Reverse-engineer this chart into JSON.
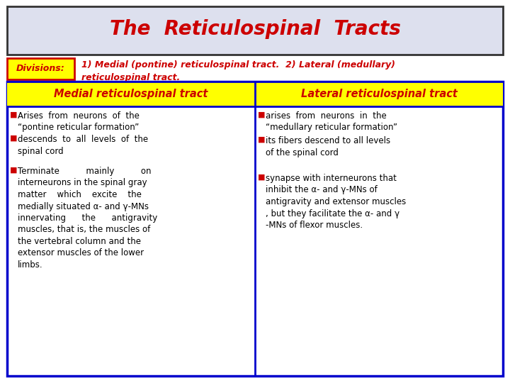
{
  "title": "The  Reticulospinal  Tracts",
  "title_color": "#cc0000",
  "title_bg": "#dde0ee",
  "title_border": "#333333",
  "divisions_label": "Divisions:",
  "divisions_text1": "1) Medial (pontine) reticulospinal tract.  2) Lateral (medullary)",
  "divisions_text2": "reticulospinal tract.",
  "divisions_color": "#cc0000",
  "col1_header": "Medial reticulospinal tract",
  "col2_header": "Lateral reticulospinal tract",
  "header_bg": "#ffff00",
  "header_color": "#cc0000",
  "table_border": "#0000cc",
  "body_bg": "#ffffff",
  "bullet_color": "#cc0000",
  "col1_b1": "Arises  from  neurons  of  the\n“pontine reticular formation”",
  "col1_b2": "descends  to  all  levels  of  the\nspinal cord",
  "col1_b3": "Terminate          mainly          on\ninterneurons in the spinal gray\nmatter    which    excite    the\nmedially situated α- and γ-MNs\ninnervating      the      antigravity\nmuscles, that is, the muscles of\nthe vertebral column and the\nextensor muscles of the lower\nlimbs.",
  "col2_b1": "arises  from  neurons  in  the\n“medullary reticular formation”",
  "col2_b2": "its fibers descend to all levels\nof the spinal cord",
  "col2_b3": "synapse with interneurons that\ninhibit the α- and γ-MNs of\nantigravity and extensor muscles\n, but they facilitate the α- and γ\n-MNs of flexor muscles.",
  "text_fontsize": 8.5,
  "header_fontsize": 10.5,
  "title_fontsize": 20
}
